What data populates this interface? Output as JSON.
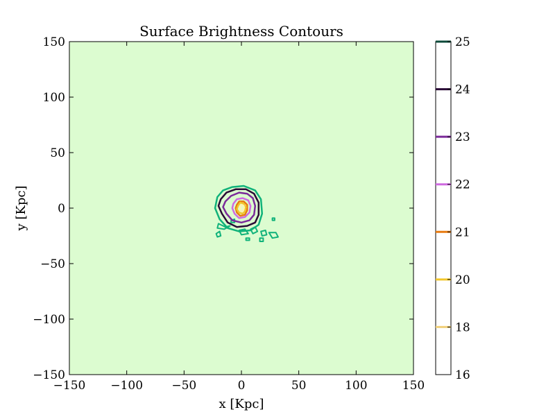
{
  "chart_data": {
    "type": "contour",
    "title": "Surface Brightness Contours",
    "xlabel": "x [Kpc]",
    "ylabel": "y [Kpc]",
    "xlim": [
      -150,
      150
    ],
    "ylim": [
      -150,
      150
    ],
    "xticks": [
      -150,
      -100,
      -50,
      0,
      50,
      100,
      150
    ],
    "yticks": [
      -150,
      -100,
      -50,
      0,
      50,
      100,
      150
    ],
    "xtick_labels": [
      "−150",
      "−100",
      "−50",
      "0",
      "50",
      "100",
      "150"
    ],
    "ytick_labels": [
      "−150",
      "−100",
      "−50",
      "0",
      "50",
      "100",
      "150"
    ],
    "background_color": "#dcfcd0",
    "grid": false,
    "colorbar": {
      "position": "right",
      "ticks": [
        {
          "value": 25,
          "label": "25",
          "color": "#0d4a3a"
        },
        {
          "value": 24,
          "label": "24",
          "color": "#2a0a36"
        },
        {
          "value": 23,
          "label": "23",
          "color": "#7b2a9a"
        },
        {
          "value": 22,
          "label": "22",
          "color": "#cf6ae0"
        },
        {
          "value": 21,
          "label": "21",
          "color": "#e87b10"
        },
        {
          "value": 20,
          "label": "20",
          "color": "#f2c62a"
        },
        {
          "value": 18,
          "label": "18",
          "color": "#f1d07a"
        },
        {
          "value": 16,
          "label": "16",
          "color": null
        }
      ]
    },
    "contours": [
      {
        "level": 25,
        "color": "#10b27a",
        "points": [
          [
            -21,
            10
          ],
          [
            -16,
            16
          ],
          [
            -8,
            19
          ],
          [
            2,
            20
          ],
          [
            12,
            16
          ],
          [
            17,
            8
          ],
          [
            18,
            -5
          ],
          [
            15,
            -15
          ],
          [
            8,
            -20
          ],
          [
            -2,
            -21
          ],
          [
            -12,
            -18
          ],
          [
            -19,
            -10
          ],
          [
            -23,
            0
          ]
        ]
      },
      {
        "level": 24,
        "color": "#2a0a36",
        "points": [
          [
            -18,
            8
          ],
          [
            -13,
            14
          ],
          [
            -5,
            17
          ],
          [
            4,
            17
          ],
          [
            11,
            13
          ],
          [
            15,
            5
          ],
          [
            15,
            -6
          ],
          [
            12,
            -13
          ],
          [
            5,
            -16
          ],
          [
            -4,
            -17
          ],
          [
            -12,
            -13
          ],
          [
            -17,
            -5
          ],
          [
            -20,
            2
          ]
        ]
      },
      {
        "level": 23,
        "color": "#7b2a9a",
        "points": [
          [
            -14,
            6
          ],
          [
            -9,
            11
          ],
          [
            -2,
            14
          ],
          [
            5,
            13
          ],
          [
            10,
            9
          ],
          [
            12,
            2
          ],
          [
            11,
            -6
          ],
          [
            7,
            -11
          ],
          [
            0,
            -13
          ],
          [
            -8,
            -11
          ],
          [
            -13,
            -5
          ],
          [
            -16,
            1
          ]
        ]
      },
      {
        "level": 22,
        "color": "#cf6ae0",
        "points": [
          [
            -7,
            4
          ],
          [
            -4,
            8
          ],
          [
            1,
            9
          ],
          [
            6,
            7
          ],
          [
            8,
            2
          ],
          [
            7,
            -4
          ],
          [
            3,
            -8
          ],
          [
            -2,
            -9
          ],
          [
            -6,
            -5
          ],
          [
            -8,
            0
          ]
        ]
      },
      {
        "level": 21,
        "color": "#e87b10",
        "points": [
          [
            -4,
            3
          ],
          [
            -2,
            6
          ],
          [
            2,
            6
          ],
          [
            5,
            3
          ],
          [
            5,
            -2
          ],
          [
            3,
            -6
          ],
          [
            -1,
            -7
          ],
          [
            -4,
            -4
          ],
          [
            -5,
            0
          ]
        ]
      },
      {
        "level": 20,
        "color": "#f2c62a",
        "points": [
          [
            -3,
            2
          ],
          [
            -1,
            5
          ],
          [
            2,
            4
          ],
          [
            4,
            1
          ],
          [
            3,
            -3
          ],
          [
            1,
            -5
          ],
          [
            -2,
            -4
          ],
          [
            -4,
            -1
          ]
        ]
      },
      {
        "level": 18,
        "color": "#fff4b0",
        "points": [
          [
            -1,
            1
          ],
          [
            0,
            3
          ],
          [
            2,
            2
          ],
          [
            2,
            -1
          ],
          [
            1,
            -3
          ],
          [
            -1,
            -2
          ]
        ]
      }
    ],
    "outer_fragments": [
      {
        "level": 25,
        "color": "#10b27a",
        "points": [
          [
            -20,
            -14
          ],
          [
            -14,
            -17
          ],
          [
            -10,
            -16
          ],
          [
            -15,
            -19
          ],
          [
            -21,
            -18
          ]
        ]
      },
      {
        "level": 25,
        "color": "#10b27a",
        "points": [
          [
            -22,
            -23
          ],
          [
            -19,
            -21
          ],
          [
            -18,
            -25
          ],
          [
            -21,
            -26
          ]
        ]
      },
      {
        "level": 25,
        "color": "#10b27a",
        "points": [
          [
            -2,
            -20
          ],
          [
            3,
            -19
          ],
          [
            6,
            -23
          ],
          [
            0,
            -24
          ]
        ]
      },
      {
        "level": 25,
        "color": "#10b27a",
        "points": [
          [
            8,
            -19
          ],
          [
            12,
            -17
          ],
          [
            14,
            -21
          ],
          [
            10,
            -23
          ]
        ]
      },
      {
        "level": 25,
        "color": "#10b27a",
        "points": [
          [
            17,
            -21
          ],
          [
            21,
            -20
          ],
          [
            22,
            -24
          ],
          [
            18,
            -25
          ]
        ]
      },
      {
        "level": 25,
        "color": "#10b27a",
        "points": [
          [
            24,
            -22
          ],
          [
            30,
            -22
          ],
          [
            32,
            -26
          ],
          [
            27,
            -27
          ]
        ]
      },
      {
        "level": 25,
        "color": "#10b27a",
        "points": [
          [
            16,
            -27
          ],
          [
            19,
            -27
          ],
          [
            19,
            -30
          ],
          [
            16,
            -30
          ]
        ]
      },
      {
        "level": 25,
        "color": "#10b27a",
        "points": [
          [
            4,
            -27
          ],
          [
            7,
            -27
          ],
          [
            7,
            -29
          ],
          [
            4,
            -29
          ]
        ]
      },
      {
        "level": 25,
        "color": "#10b27a",
        "points": [
          [
            -9,
            -11
          ],
          [
            -6,
            -10
          ],
          [
            -6,
            -13
          ],
          [
            -9,
            -13
          ]
        ]
      },
      {
        "level": 25,
        "color": "#10b27a",
        "points": [
          [
            27,
            -9
          ],
          [
            29,
            -9
          ],
          [
            29,
            -11
          ],
          [
            27,
            -11
          ]
        ]
      }
    ]
  }
}
